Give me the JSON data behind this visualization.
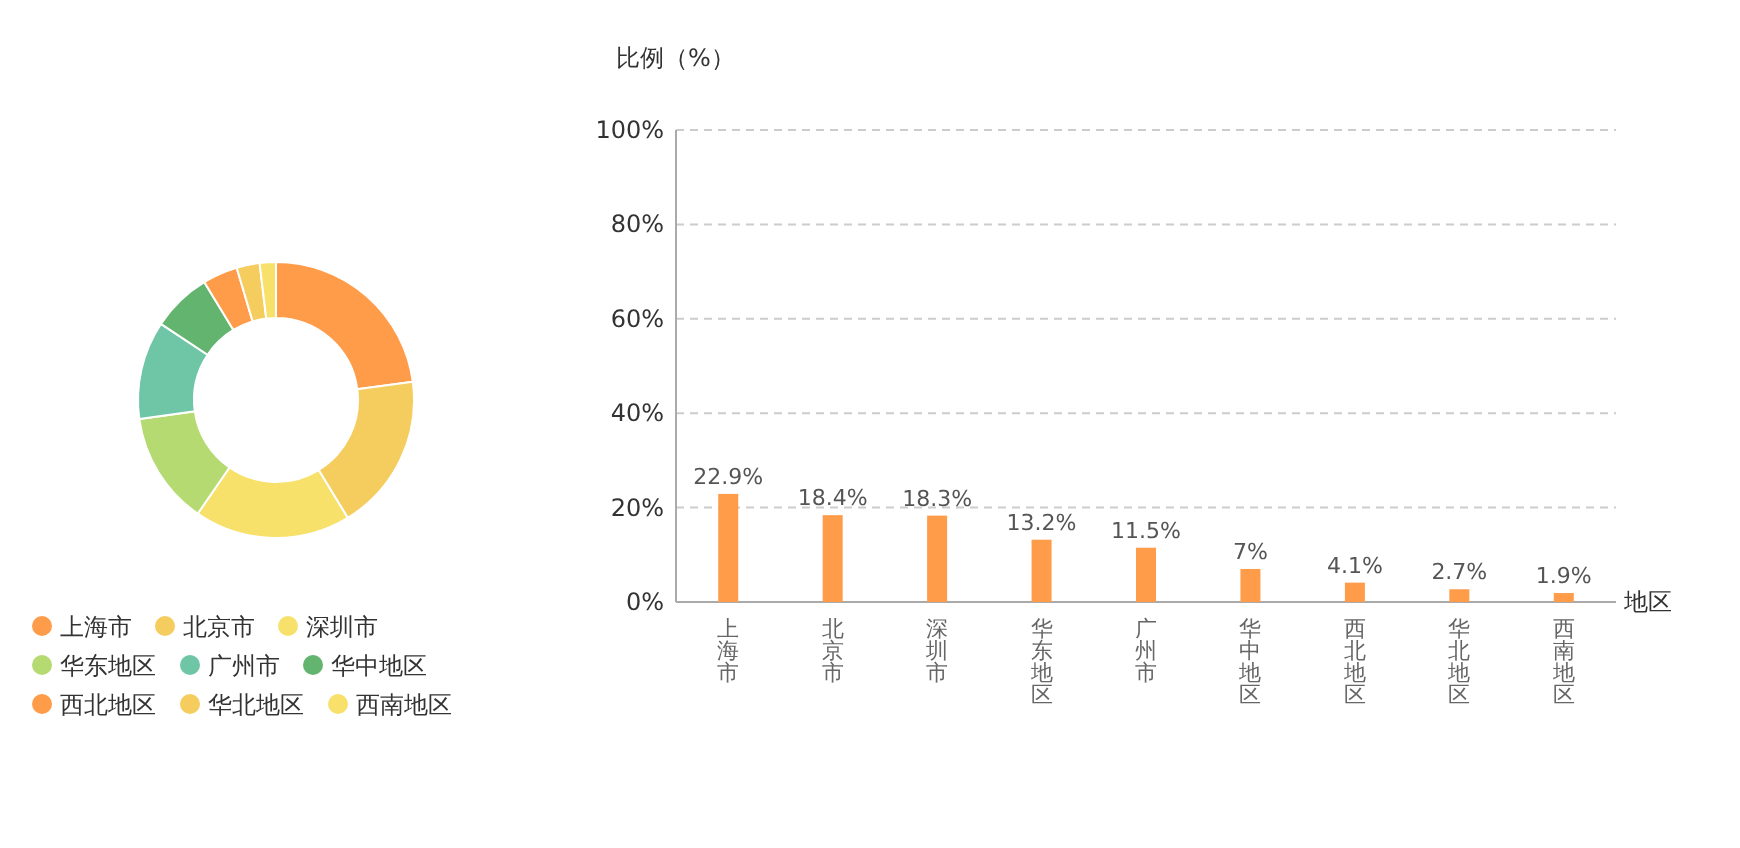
{
  "chart_data": [
    {
      "type": "donut",
      "categories": [
        "上海市",
        "北京市",
        "深圳市",
        "华东地区",
        "广州市",
        "华中地区",
        "西北地区",
        "华北地区",
        "西南地区"
      ],
      "values": [
        22.9,
        18.4,
        18.3,
        13.2,
        11.5,
        7,
        4.1,
        2.7,
        1.9
      ],
      "colors": [
        "#ff9c4a",
        "#f5cc5e",
        "#f7e16b",
        "#b6da72",
        "#6ec6a7",
        "#62b46e",
        "#ff9c4a",
        "#f5cc5e",
        "#f7e16b"
      ],
      "legend": "bottom"
    },
    {
      "type": "bar",
      "ylabel": "比例（%）",
      "xlabel": "地区",
      "categories": [
        "上海市",
        "北京市",
        "深圳市",
        "华东地区",
        "广州市",
        "华中地区",
        "西北地区",
        "华北地区",
        "西南地区"
      ],
      "values": [
        22.9,
        18.4,
        18.3,
        13.2,
        11.5,
        7,
        4.1,
        2.7,
        1.9
      ],
      "value_labels": [
        "22.9%",
        "18.4%",
        "18.3%",
        "13.2%",
        "11.5%",
        "7%",
        "4.1%",
        "2.7%",
        "1.9%"
      ],
      "color": "#ff9c4a",
      "ylim": [
        0,
        100
      ],
      "yticks": [
        {
          "value": 0,
          "label": "0%"
        },
        {
          "value": 20,
          "label": "20%"
        },
        {
          "value": 40,
          "label": "40%"
        },
        {
          "value": 60,
          "label": "60%"
        },
        {
          "value": 80,
          "label": "80%"
        },
        {
          "value": 100,
          "label": "100%"
        }
      ],
      "grid": "y"
    }
  ]
}
